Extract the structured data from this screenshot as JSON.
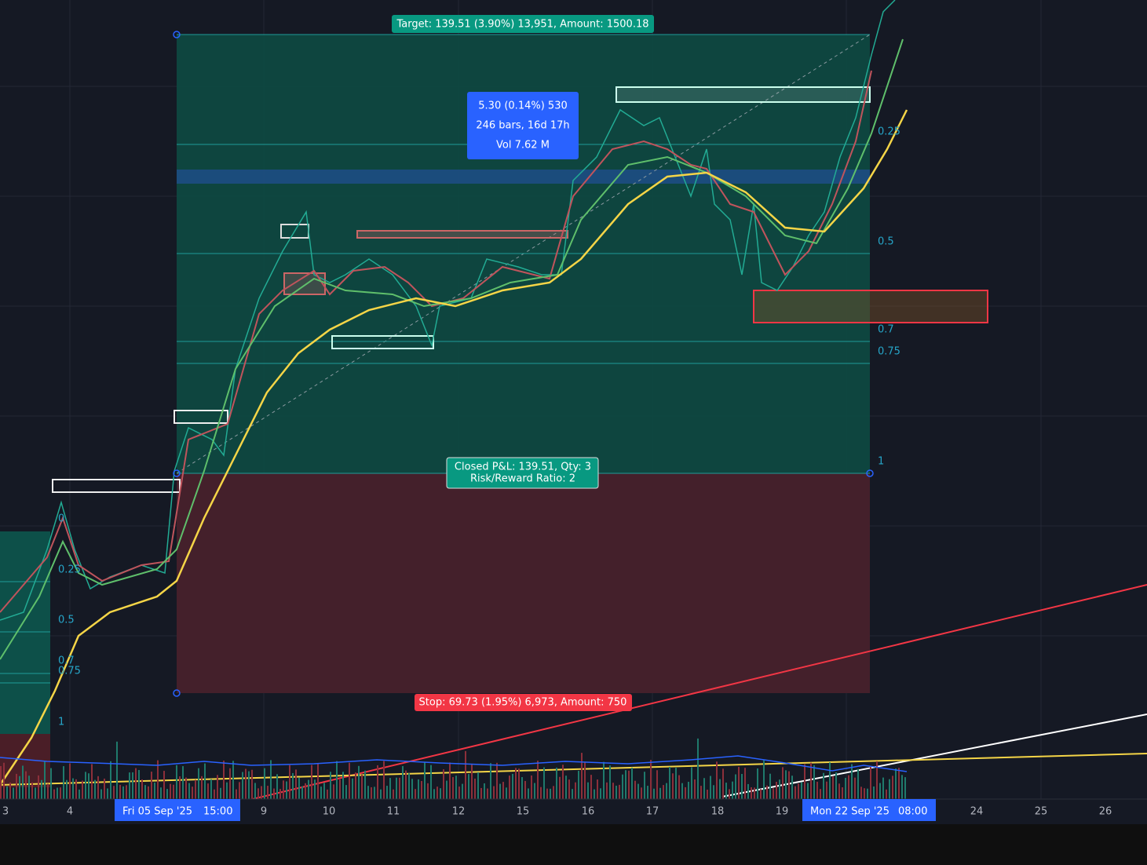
{
  "position": {
    "target_label": "Target: 139.51 (3.90%) 13,951, Amount: 1500.18",
    "stop_label": "Stop: 69.73 (1.95%) 6,973, Amount: 750",
    "pnl_lines": [
      "Closed P&L: 139.51, Qty: 3",
      "Risk/Reward Ratio: 2"
    ]
  },
  "measure": [
    "5.30 (0.14%) 530",
    "246 bars, 16d 17h",
    "Vol 7.62 M"
  ],
  "fib_levels": [
    0.25,
    0.5,
    0.7,
    0.75,
    1
  ],
  "small_fib_levels": [
    0,
    0.25,
    0.5,
    0.7,
    0.75,
    1
  ],
  "x_axis": {
    "labels": [
      "3",
      "4",
      "9",
      "10",
      "11",
      "12",
      "15",
      "16",
      "17",
      "18",
      "19",
      "24",
      "25",
      "26"
    ],
    "start_date": "Fri 05 Sep '25",
    "start_time": "15:00",
    "end_date": "Mon 22 Sep '25",
    "end_time": "08:00"
  }
}
